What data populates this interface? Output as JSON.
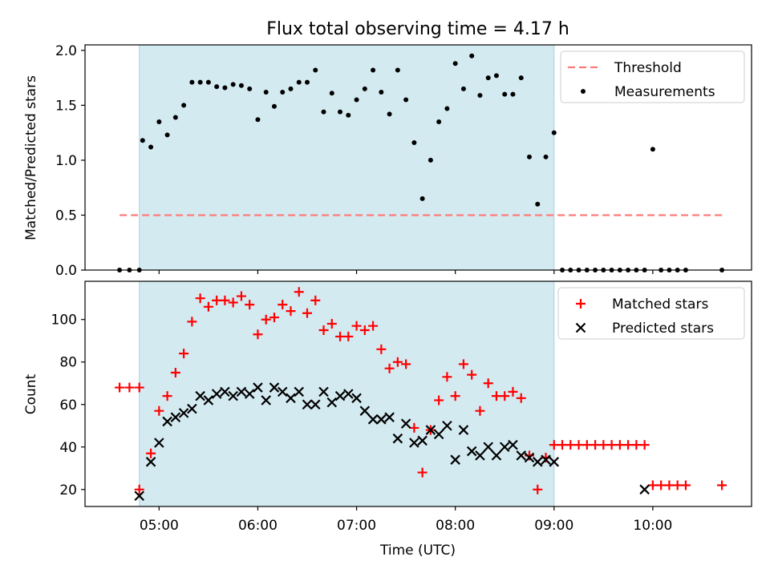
{
  "figure": {
    "title": "Flux total observing time = 4.17 h",
    "xlabel": "Time (UTC)",
    "x_ticks": [
      "5:00",
      "6:00",
      "7:00",
      "8:00",
      "9:00",
      "10:00"
    ],
    "x_tick_labels": [
      "05:00",
      "06:00",
      "07:00",
      "08:00",
      "09:00",
      "10:00"
    ]
  },
  "colors": {
    "shade": "#d4eaf1",
    "shade_edge": "#a7d2e0",
    "threshold": "#ff7b7b",
    "measurement": "#000000",
    "matched": "#ff0000",
    "predicted": "#000000"
  },
  "chart_data": [
    {
      "type": "scatter",
      "ylabel": "Matched/Predicted stars",
      "xlim": [
        "4:15",
        "11:00"
      ],
      "ylim": [
        0,
        2.05
      ],
      "y_ticks": [
        0,
        0.5,
        1.0,
        1.5,
        2.0
      ],
      "y_tick_labels": [
        "0.0",
        "0.5",
        "1.0",
        "1.5",
        "2.0"
      ],
      "shaded_interval": [
        "4:48",
        "9:00"
      ],
      "legend": {
        "position": "top-right",
        "entries": [
          "Threshold",
          "Measurements"
        ]
      },
      "threshold": {
        "name": "Threshold",
        "value": 0.5,
        "x": [
          "4:36",
          "10:42"
        ]
      },
      "series": [
        {
          "name": "Measurements",
          "points": [
            [
              "4:36",
              0
            ],
            [
              "4:42",
              0
            ],
            [
              "4:48",
              0
            ],
            [
              "4:50",
              1.18
            ],
            [
              "4:55",
              1.12
            ],
            [
              "5:00",
              1.35
            ],
            [
              "5:05",
              1.23
            ],
            [
              "5:10",
              1.39
            ],
            [
              "5:15",
              1.5
            ],
            [
              "5:20",
              1.71
            ],
            [
              "5:25",
              1.71
            ],
            [
              "5:30",
              1.71
            ],
            [
              "5:35",
              1.67
            ],
            [
              "5:40",
              1.66
            ],
            [
              "5:45",
              1.69
            ],
            [
              "5:50",
              1.68
            ],
            [
              "5:55",
              1.65
            ],
            [
              "6:00",
              1.37
            ],
            [
              "6:05",
              1.62
            ],
            [
              "6:10",
              1.49
            ],
            [
              "6:15",
              1.62
            ],
            [
              "6:20",
              1.65
            ],
            [
              "6:25",
              1.71
            ],
            [
              "6:30",
              1.71
            ],
            [
              "6:35",
              1.82
            ],
            [
              "6:40",
              1.44
            ],
            [
              "6:45",
              1.61
            ],
            [
              "6:50",
              1.44
            ],
            [
              "6:55",
              1.41
            ],
            [
              "7:00",
              1.55
            ],
            [
              "7:05",
              1.65
            ],
            [
              "7:10",
              1.82
            ],
            [
              "7:15",
              1.62
            ],
            [
              "7:20",
              1.42
            ],
            [
              "7:25",
              1.82
            ],
            [
              "7:30",
              1.55
            ],
            [
              "7:35",
              1.16
            ],
            [
              "7:40",
              0.65
            ],
            [
              "7:45",
              1.0
            ],
            [
              "7:50",
              1.35
            ],
            [
              "7:55",
              1.47
            ],
            [
              "8:00",
              1.88
            ],
            [
              "8:05",
              1.65
            ],
            [
              "8:10",
              1.95
            ],
            [
              "8:15",
              1.59
            ],
            [
              "8:20",
              1.75
            ],
            [
              "8:25",
              1.77
            ],
            [
              "8:30",
              1.6
            ],
            [
              "8:35",
              1.6
            ],
            [
              "8:40",
              1.75
            ],
            [
              "8:45",
              1.03
            ],
            [
              "8:50",
              0.6
            ],
            [
              "8:55",
              1.03
            ],
            [
              "9:00",
              1.25
            ],
            [
              "9:05",
              0
            ],
            [
              "9:10",
              0
            ],
            [
              "9:15",
              0
            ],
            [
              "9:20",
              0
            ],
            [
              "9:25",
              0
            ],
            [
              "9:30",
              0
            ],
            [
              "9:35",
              0
            ],
            [
              "9:40",
              0
            ],
            [
              "9:45",
              0
            ],
            [
              "9:50",
              0
            ],
            [
              "9:55",
              0
            ],
            [
              "10:00",
              1.1
            ],
            [
              "10:05",
              0
            ],
            [
              "10:10",
              0
            ],
            [
              "10:15",
              0
            ],
            [
              "10:20",
              0
            ],
            [
              "10:42",
              0
            ]
          ]
        }
      ]
    },
    {
      "type": "scatter",
      "ylabel": "Count",
      "xlim": [
        "4:15",
        "11:00"
      ],
      "ylim": [
        12,
        118
      ],
      "y_ticks": [
        20,
        40,
        60,
        80,
        100
      ],
      "y_tick_labels": [
        "20",
        "40",
        "60",
        "80",
        "100"
      ],
      "shaded_interval": [
        "4:48",
        "9:00"
      ],
      "legend": {
        "position": "top-right",
        "entries": [
          "Matched stars",
          "Predicted stars"
        ]
      },
      "series": [
        {
          "name": "Matched stars",
          "marker": "plus",
          "points": [
            [
              "4:36",
              68
            ],
            [
              "4:42",
              68
            ],
            [
              "4:48",
              68
            ],
            [
              "4:48",
              20
            ],
            [
              "4:55",
              37
            ],
            [
              "5:00",
              57
            ],
            [
              "5:05",
              64
            ],
            [
              "5:10",
              75
            ],
            [
              "5:15",
              84
            ],
            [
              "5:20",
              99
            ],
            [
              "5:25",
              110
            ],
            [
              "5:30",
              106
            ],
            [
              "5:35",
              109
            ],
            [
              "5:40",
              109
            ],
            [
              "5:45",
              108
            ],
            [
              "5:50",
              111
            ],
            [
              "5:55",
              107
            ],
            [
              "6:00",
              93
            ],
            [
              "6:05",
              100
            ],
            [
              "6:10",
              101
            ],
            [
              "6:15",
              107
            ],
            [
              "6:20",
              104
            ],
            [
              "6:25",
              113
            ],
            [
              "6:30",
              103
            ],
            [
              "6:35",
              109
            ],
            [
              "6:40",
              95
            ],
            [
              "6:45",
              98
            ],
            [
              "6:50",
              92
            ],
            [
              "6:55",
              92
            ],
            [
              "7:00",
              97
            ],
            [
              "7:05",
              95
            ],
            [
              "7:10",
              97
            ],
            [
              "7:15",
              86
            ],
            [
              "7:20",
              77
            ],
            [
              "7:25",
              80
            ],
            [
              "7:30",
              79
            ],
            [
              "7:35",
              49
            ],
            [
              "7:40",
              28
            ],
            [
              "7:45",
              48
            ],
            [
              "7:50",
              62
            ],
            [
              "7:55",
              73
            ],
            [
              "8:00",
              64
            ],
            [
              "8:05",
              79
            ],
            [
              "8:10",
              74
            ],
            [
              "8:15",
              57
            ],
            [
              "8:20",
              70
            ],
            [
              "8:25",
              64
            ],
            [
              "8:30",
              64
            ],
            [
              "8:35",
              66
            ],
            [
              "8:40",
              63
            ],
            [
              "8:45",
              36
            ],
            [
              "8:50",
              20
            ],
            [
              "8:55",
              35
            ],
            [
              "9:00",
              41
            ],
            [
              "9:05",
              41
            ],
            [
              "9:10",
              41
            ],
            [
              "9:15",
              41
            ],
            [
              "9:20",
              41
            ],
            [
              "9:25",
              41
            ],
            [
              "9:30",
              41
            ],
            [
              "9:35",
              41
            ],
            [
              "9:40",
              41
            ],
            [
              "9:45",
              41
            ],
            [
              "9:50",
              41
            ],
            [
              "9:55",
              41
            ],
            [
              "10:00",
              22
            ],
            [
              "10:05",
              22
            ],
            [
              "10:10",
              22
            ],
            [
              "10:15",
              22
            ],
            [
              "10:20",
              22
            ],
            [
              "10:42",
              22
            ]
          ]
        },
        {
          "name": "Predicted stars",
          "marker": "x",
          "points": [
            [
              "4:48",
              17
            ],
            [
              "4:55",
              33
            ],
            [
              "5:00",
              42
            ],
            [
              "5:05",
              52
            ],
            [
              "5:10",
              54
            ],
            [
              "5:15",
              56
            ],
            [
              "5:20",
              58
            ],
            [
              "5:25",
              64
            ],
            [
              "5:30",
              62
            ],
            [
              "5:35",
              65
            ],
            [
              "5:40",
              66
            ],
            [
              "5:45",
              64
            ],
            [
              "5:50",
              66
            ],
            [
              "5:55",
              65
            ],
            [
              "6:00",
              68
            ],
            [
              "6:05",
              62
            ],
            [
              "6:10",
              68
            ],
            [
              "6:15",
              66
            ],
            [
              "6:20",
              63
            ],
            [
              "6:25",
              66
            ],
            [
              "6:30",
              60
            ],
            [
              "6:35",
              60
            ],
            [
              "6:40",
              66
            ],
            [
              "6:45",
              61
            ],
            [
              "6:50",
              64
            ],
            [
              "6:55",
              65
            ],
            [
              "7:00",
              63
            ],
            [
              "7:05",
              57
            ],
            [
              "7:10",
              53
            ],
            [
              "7:15",
              53
            ],
            [
              "7:20",
              54
            ],
            [
              "7:25",
              44
            ],
            [
              "7:30",
              51
            ],
            [
              "7:35",
              42
            ],
            [
              "7:40",
              43
            ],
            [
              "7:45",
              48
            ],
            [
              "7:50",
              46
            ],
            [
              "7:55",
              50
            ],
            [
              "8:00",
              34
            ],
            [
              "8:05",
              48
            ],
            [
              "8:10",
              38
            ],
            [
              "8:15",
              36
            ],
            [
              "8:20",
              40
            ],
            [
              "8:25",
              36
            ],
            [
              "8:30",
              40
            ],
            [
              "8:35",
              41
            ],
            [
              "8:40",
              36
            ],
            [
              "8:45",
              35
            ],
            [
              "8:50",
              33
            ],
            [
              "8:55",
              34
            ],
            [
              "9:00",
              33
            ],
            [
              "9:55",
              20
            ]
          ]
        }
      ]
    }
  ]
}
